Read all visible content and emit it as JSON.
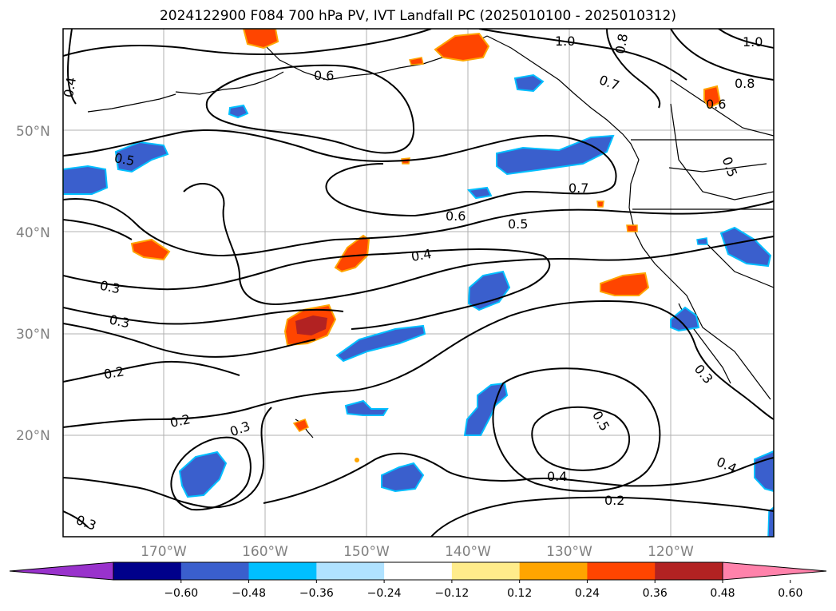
{
  "title": "2024122900 F084 700 hPa PV, IVT Landfall PC (2025010100 - 2025010312)",
  "map": {
    "lat_ticks": [
      "50°N",
      "40°N",
      "30°N",
      "20°N"
    ],
    "lon_ticks": [
      "170°W",
      "160°W",
      "150°W",
      "140°W",
      "130°W",
      "120°W"
    ],
    "contour_labels": [
      "0.4",
      "0.6",
      "1.0",
      "0.8",
      "1.0",
      "0.7",
      "0.8",
      "0.6",
      "0.5",
      "0.7",
      "0.6",
      "0.5",
      "0.4",
      "0.5",
      "0.3",
      "0.3",
      "0.2",
      "0.2",
      "0.3",
      "0.5",
      "0.3",
      "0.4",
      "0.4",
      "0.2",
      "0.3"
    ],
    "shading_colors": {
      "neg_strong": "#00008b",
      "neg_mid": "#3a5fcd",
      "neg_light": "#00bfff",
      "neg_faint": "#b0e2ff",
      "pos_faint": "#ffec8b",
      "pos_light": "#ffa500",
      "pos_mid": "#ff4500",
      "pos_strong": "#b22222"
    }
  },
  "colorbar": {
    "tick_labels": [
      "−0.60",
      "−0.48",
      "−0.36",
      "−0.24",
      "−0.12",
      "0.12",
      "0.24",
      "0.36",
      "0.48",
      "0.60"
    ],
    "colors": [
      "#9932cc",
      "#00008b",
      "#3a5fcd",
      "#00bfff",
      "#b0e2ff",
      "#ffffff",
      "#ffec8b",
      "#ffa500",
      "#ff4500",
      "#b22222",
      "#ff82ab"
    ]
  }
}
